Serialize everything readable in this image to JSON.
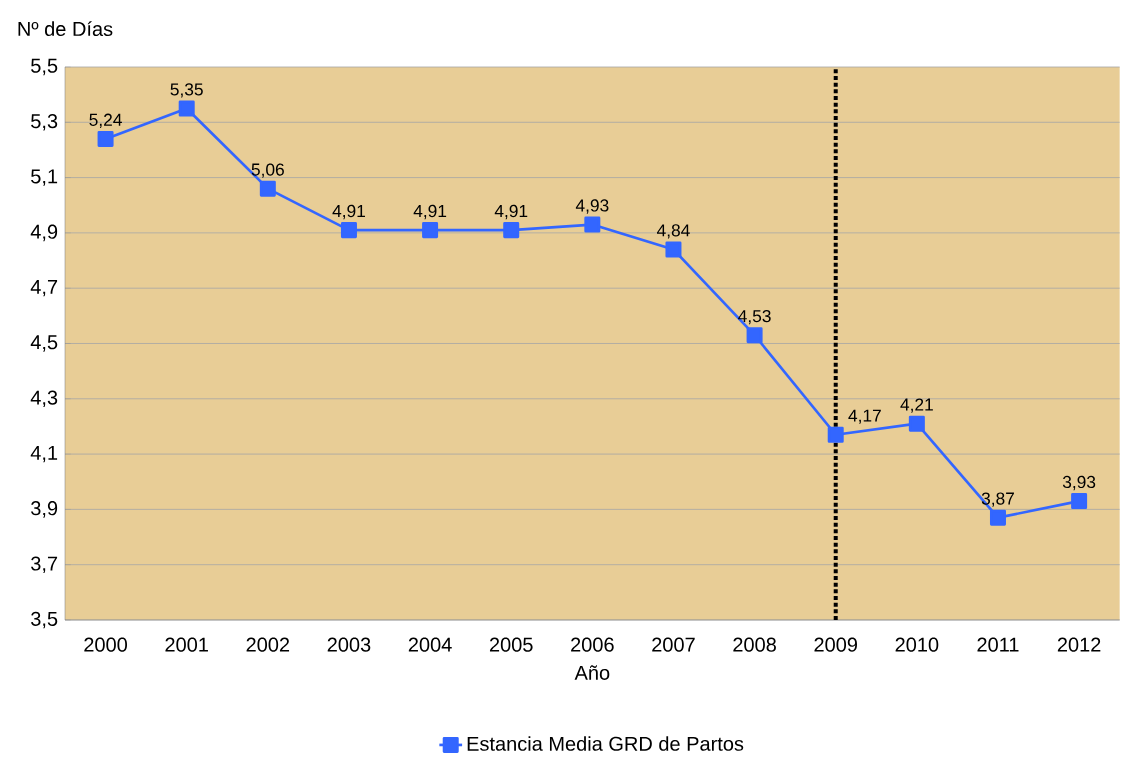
{
  "chart_data": {
    "type": "line",
    "xlabel": "Año",
    "ylabel": "Nº de Días",
    "categories": [
      "2000",
      "2001",
      "2002",
      "2003",
      "2004",
      "2005",
      "2006",
      "2007",
      "2008",
      "2009",
      "2010",
      "2011",
      "2012"
    ],
    "series": [
      {
        "name": "Estancia Media GRD de Partos",
        "color": "#3366ff",
        "values": [
          5.24,
          5.35,
          5.06,
          4.91,
          4.91,
          4.91,
          4.93,
          4.84,
          4.53,
          4.17,
          4.21,
          3.87,
          3.93
        ],
        "value_labels": [
          "5,24",
          "5,35",
          "5,06",
          "4,91",
          "4,91",
          "4,91",
          "4,93",
          "4,84",
          "4,53",
          "4,17",
          "4,21",
          "3,87",
          "3,93"
        ]
      }
    ],
    "ylim": [
      3.5,
      5.5
    ],
    "yticks": [
      {
        "value": 3.5,
        "label": "3,5"
      },
      {
        "value": 3.7,
        "label": "3,7"
      },
      {
        "value": 3.9,
        "label": "3,9"
      },
      {
        "value": 4.1,
        "label": "4,1"
      },
      {
        "value": 4.3,
        "label": "4,3"
      },
      {
        "value": 4.5,
        "label": "4,5"
      },
      {
        "value": 4.7,
        "label": "4,7"
      },
      {
        "value": 4.9,
        "label": "4,9"
      },
      {
        "value": 5.1,
        "label": "5,1"
      },
      {
        "value": 5.3,
        "label": "5,3"
      },
      {
        "value": 5.5,
        "label": "5,5"
      }
    ],
    "ref_lines": [
      {
        "axis": "x",
        "value": "2009",
        "color": "#000000",
        "line_style": "dotted"
      }
    ],
    "grid": "y",
    "legend": "bottom",
    "marker": "square",
    "line_style": "solid"
  }
}
